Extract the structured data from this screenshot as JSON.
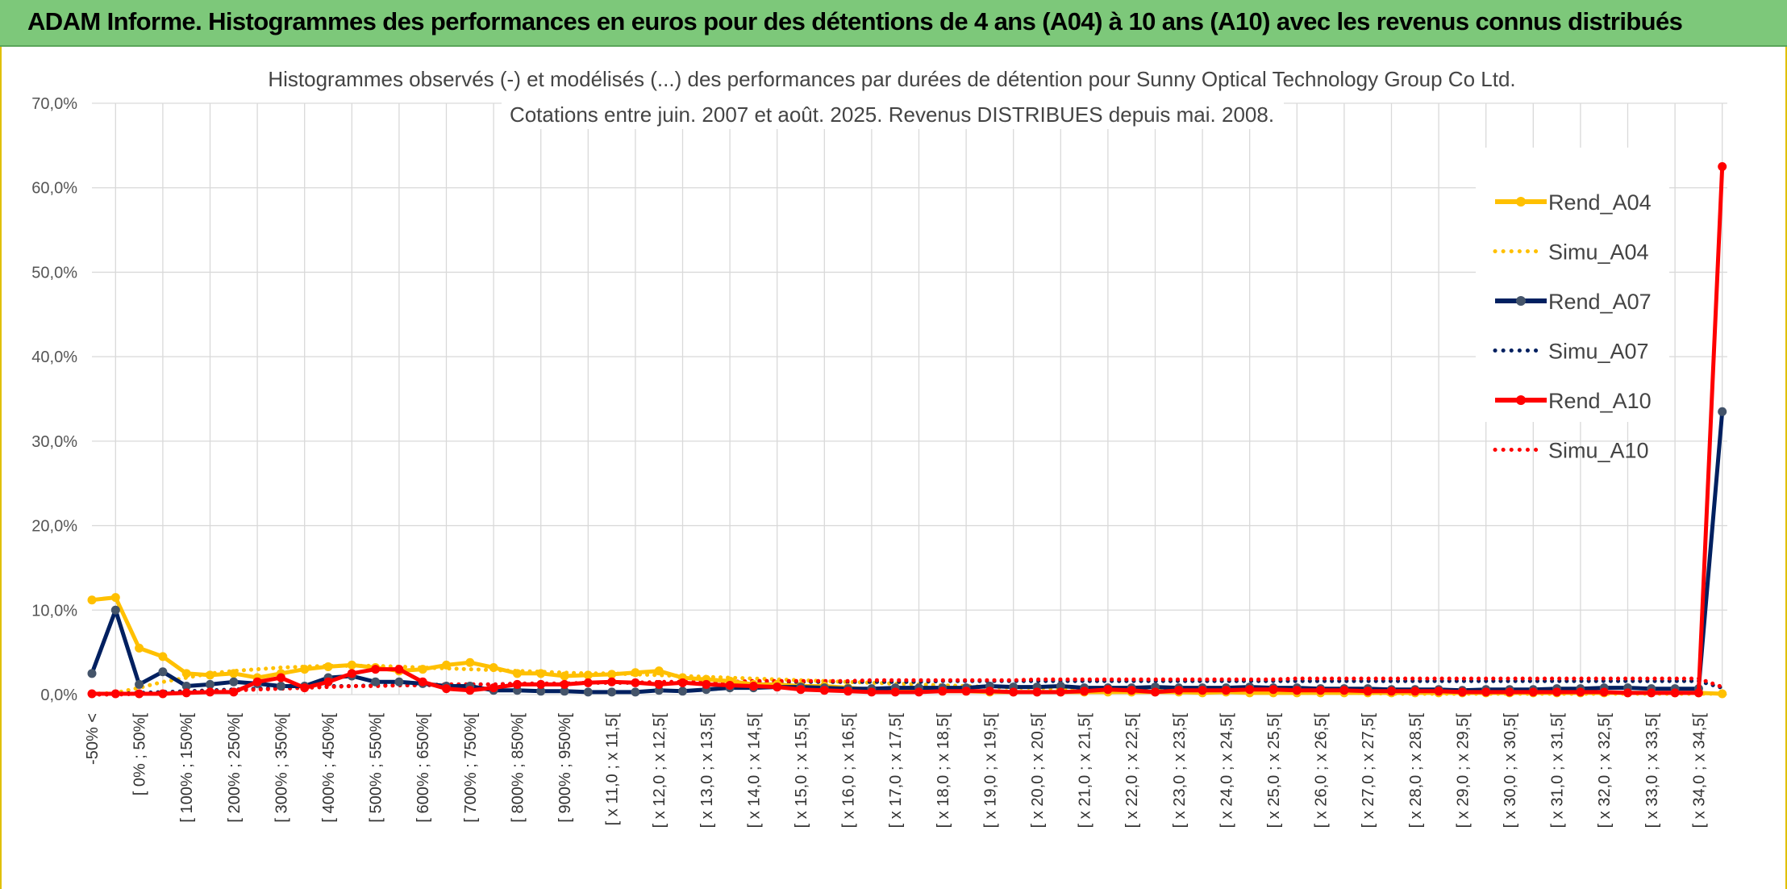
{
  "header": {
    "title": "ADAM Informe. Histogrammes des performances en euros pour des détentions de 4 ans (A04) à 10 ans (A10) avec les revenus connus distribués"
  },
  "colors": {
    "banner": "#7dc87a",
    "a04": "#ffc000",
    "a07": "#002060",
    "a10": "#ff0000",
    "grid": "#d9d9d9"
  },
  "chart_data": {
    "type": "line",
    "title": [
      "Histogrammes observés (-) et modélisés (...) des performances par durées de détention pour Sunny Optical Technology Group Co Ltd.",
      "Cotations entre juin. 2007 et août. 2025. Revenus DISTRIBUES depuis mai. 2008."
    ],
    "ylim": [
      0,
      70
    ],
    "yticks": [
      "0,0%",
      "10,0%",
      "20,0%",
      "30,0%",
      "40,0%",
      "50,0%",
      "60,0%",
      "70,0%"
    ],
    "grid": true,
    "legend_position": "top-right",
    "category_count": 70,
    "tick_labels": [
      "-50% <",
      "[ 0% ; 50%[",
      "[ 100% ; 150%[",
      "[ 200% ; 250%[",
      "[ 300% ; 350%[",
      "[ 400% ; 450%[",
      "[ 500% ; 550%[",
      "[ 600% ; 650%[",
      "[ 700% ; 750%[",
      "[ 800% ; 850%[",
      "[ 900% ; 950%[",
      "[ x 11,0 ; x 11,5[",
      "[ x 12,0 ; x 12,5[",
      "[ x 13,0 ; x 13,5[",
      "[ x 14,0 ; x 14,5[",
      "[ x 15,0 ; x 15,5[",
      "[ x 16,0 ; x 16,5[",
      "[ x 17,0 ; x 17,5[",
      "[ x 18,0 ; x 18,5[",
      "[ x 19,0 ; x 19,5[",
      "[ x 20,0 ; x 20,5[",
      "[ x 21,0 ; x 21,5[",
      "[ x 22,0 ; x 22,5[",
      "[ x 23,0 ; x 23,5[",
      "[ x 24,0 ; x 24,5[",
      "[ x 25,0 ; x 25,5[",
      "[ x 26,0 ; x 26,5[",
      "[ x 27,0 ; x 27,5[",
      "[ x 28,0 ; x 28,5[",
      "[ x 29,0 ; x 29,5[",
      "[ x 30,0 ; x 30,5[",
      "[ x 31,0 ; x 31,5[",
      "[ x 32,0 ; x 32,5[",
      "[ x 33,0 ; x 33,5[",
      "[ x 34,0 ; x 34,5["
    ],
    "series": [
      {
        "name": "Rend_A04",
        "style": "solid",
        "color": "#ffc000",
        "values": [
          11.2,
          11.5,
          5.5,
          4.5,
          2.5,
          2.3,
          2.5,
          2.0,
          2.5,
          3.0,
          3.3,
          3.5,
          3.2,
          2.8,
          3.0,
          3.5,
          3.8,
          3.2,
          2.5,
          2.5,
          2.2,
          2.3,
          2.4,
          2.6,
          2.8,
          2.0,
          1.8,
          1.6,
          1.2,
          1.2,
          1.0,
          1.0,
          0.8,
          0.6,
          0.5,
          0.5,
          0.4,
          0.4,
          0.3,
          0.3,
          0.3,
          0.3,
          0.3,
          0.3,
          0.3,
          0.3,
          0.3,
          0.2,
          0.3,
          0.2,
          0.2,
          0.2,
          0.2,
          0.2,
          0.2,
          0.2,
          0.2,
          0.2,
          0.2,
          0.2,
          0.2,
          0.2,
          0.2,
          0.2,
          0.2,
          0.2,
          0.2,
          0.2,
          0.2,
          0.1
        ]
      },
      {
        "name": "Simu_A04",
        "style": "dotted",
        "color": "#ffc000",
        "values": [
          0.1,
          0.2,
          0.8,
          1.5,
          2.0,
          2.5,
          2.8,
          3.0,
          3.2,
          3.3,
          3.4,
          3.4,
          3.4,
          3.3,
          3.2,
          3.1,
          3.0,
          2.9,
          2.8,
          2.7,
          2.6,
          2.5,
          2.5,
          2.4,
          2.3,
          2.2,
          2.1,
          2.0,
          1.9,
          1.8,
          1.7,
          1.6,
          1.5,
          1.4,
          1.3,
          1.2,
          1.1,
          1.0,
          0.9,
          0.8,
          0.8,
          0.7,
          0.6,
          0.6,
          0.5,
          0.5,
          0.4,
          0.4,
          0.3,
          0.3,
          0.3,
          0.2,
          0.2,
          0.2,
          0.2,
          0.1,
          0.1,
          0.1,
          0.1,
          0.1,
          0.1,
          0.1,
          0.1,
          0.1,
          0.1,
          0.1,
          0.1,
          0.1,
          0.1,
          0.1
        ]
      },
      {
        "name": "Rend_A07",
        "style": "solid",
        "color": "#002060",
        "values": [
          2.5,
          10.0,
          1.2,
          2.7,
          1.0,
          1.2,
          1.5,
          1.3,
          1.0,
          1.0,
          2.0,
          2.2,
          1.5,
          1.5,
          1.3,
          1.0,
          1.0,
          0.5,
          0.5,
          0.4,
          0.4,
          0.3,
          0.3,
          0.3,
          0.5,
          0.4,
          0.6,
          0.8,
          0.8,
          0.9,
          0.9,
          0.8,
          0.7,
          0.7,
          0.8,
          0.8,
          0.8,
          0.8,
          1.0,
          0.9,
          0.9,
          1.0,
          0.8,
          0.8,
          0.8,
          0.9,
          0.8,
          0.8,
          0.8,
          0.9,
          0.8,
          0.8,
          0.7,
          0.7,
          0.7,
          0.6,
          0.6,
          0.6,
          0.5,
          0.6,
          0.6,
          0.6,
          0.7,
          0.7,
          0.8,
          0.8,
          0.7,
          0.7,
          0.7,
          33.5
        ]
      },
      {
        "name": "Simu_A07",
        "style": "dotted",
        "color": "#002060",
        "values": [
          0.0,
          0.1,
          0.2,
          0.3,
          0.4,
          0.5,
          0.6,
          0.7,
          0.8,
          0.9,
          1.0,
          1.0,
          1.1,
          1.1,
          1.1,
          1.2,
          1.2,
          1.2,
          1.3,
          1.3,
          1.3,
          1.4,
          1.4,
          1.4,
          1.4,
          1.4,
          1.5,
          1.5,
          1.5,
          1.5,
          1.5,
          1.5,
          1.5,
          1.5,
          1.5,
          1.5,
          1.6,
          1.6,
          1.6,
          1.6,
          1.6,
          1.6,
          1.6,
          1.6,
          1.6,
          1.6,
          1.6,
          1.6,
          1.6,
          1.6,
          1.6,
          1.6,
          1.6,
          1.6,
          1.6,
          1.6,
          1.6,
          1.6,
          1.6,
          1.6,
          1.6,
          1.6,
          1.6,
          1.6,
          1.6,
          1.6,
          1.6,
          1.6,
          1.6,
          0.8
        ]
      },
      {
        "name": "Rend_A10",
        "style": "solid",
        "color": "#ff0000",
        "values": [
          0.1,
          0.1,
          0.1,
          0.1,
          0.2,
          0.3,
          0.3,
          1.5,
          2.0,
          0.8,
          1.5,
          2.5,
          3.0,
          3.0,
          1.5,
          0.7,
          0.5,
          0.8,
          1.2,
          1.2,
          1.2,
          1.4,
          1.5,
          1.4,
          1.2,
          1.4,
          1.2,
          1.1,
          1.0,
          0.9,
          0.6,
          0.5,
          0.4,
          0.3,
          0.3,
          0.3,
          0.4,
          0.4,
          0.4,
          0.3,
          0.3,
          0.3,
          0.4,
          0.6,
          0.5,
          0.3,
          0.5,
          0.5,
          0.5,
          0.6,
          0.6,
          0.5,
          0.5,
          0.5,
          0.4,
          0.4,
          0.4,
          0.4,
          0.3,
          0.3,
          0.3,
          0.3,
          0.3,
          0.3,
          0.3,
          0.2,
          0.2,
          0.2,
          0.2,
          62.5
        ]
      },
      {
        "name": "Simu_A10",
        "style": "dotted",
        "color": "#ff0000",
        "values": [
          0.0,
          0.0,
          0.1,
          0.2,
          0.3,
          0.4,
          0.5,
          0.6,
          0.7,
          0.8,
          0.9,
          1.0,
          1.0,
          1.1,
          1.1,
          1.2,
          1.2,
          1.2,
          1.3,
          1.3,
          1.3,
          1.4,
          1.4,
          1.4,
          1.5,
          1.5,
          1.5,
          1.5,
          1.6,
          1.6,
          1.6,
          1.6,
          1.6,
          1.7,
          1.7,
          1.7,
          1.7,
          1.7,
          1.7,
          1.7,
          1.8,
          1.8,
          1.8,
          1.8,
          1.8,
          1.8,
          1.8,
          1.8,
          1.8,
          1.8,
          1.8,
          1.9,
          1.9,
          1.9,
          1.9,
          1.9,
          1.9,
          1.9,
          1.9,
          1.9,
          1.9,
          1.9,
          1.9,
          1.9,
          1.9,
          1.9,
          1.9,
          1.9,
          1.9,
          0.9
        ]
      }
    ]
  }
}
